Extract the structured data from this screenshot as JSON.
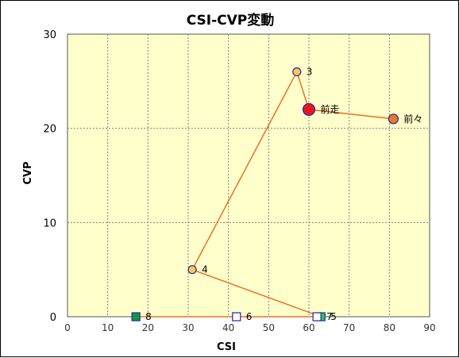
{
  "chart_data": {
    "type": "scatter",
    "title": "CSI-CVP変動",
    "xlabel": "CSI",
    "ylabel": "CVP",
    "xlim": [
      0,
      90
    ],
    "ylim": [
      0,
      30
    ],
    "x_ticks": [
      0,
      10,
      20,
      30,
      40,
      50,
      60,
      70,
      80,
      90
    ],
    "y_ticks": [
      0,
      10,
      20,
      30
    ],
    "grid": true,
    "colors": {
      "plot_bg": "#ffffcc",
      "grid": "#808080",
      "line": "#f07020",
      "marker_border": "#2020c0"
    },
    "path_order": [
      "前々",
      "前走",
      "3",
      "4",
      "5",
      "6",
      "7",
      "8"
    ],
    "points": [
      {
        "label": "前々",
        "x": 81,
        "y": 21,
        "marker": "circle",
        "color": "#f07820",
        "size": "medium",
        "on_path": true
      },
      {
        "label": "前走",
        "x": 60,
        "y": 22,
        "marker": "circle",
        "color": "#e81818",
        "size": "large",
        "on_path": true
      },
      {
        "label": "3",
        "x": 57,
        "y": 26,
        "marker": "circle",
        "color": "#ffcc44",
        "size": "small",
        "on_path": true
      },
      {
        "label": "4",
        "x": 31,
        "y": 5,
        "marker": "circle",
        "color": "#ffcc44",
        "size": "small",
        "on_path": true
      },
      {
        "label": "5",
        "x": 63,
        "y": 0,
        "marker": "square",
        "color": "#33cc33",
        "size": "small",
        "on_path": true
      },
      {
        "label": "6",
        "x": 42,
        "y": 0,
        "marker": "square",
        "color": "#ffffff",
        "size": "small",
        "on_path": true
      },
      {
        "label": "7",
        "x": 62,
        "y": 0,
        "marker": "square",
        "color": "#ffffff",
        "size": "small",
        "on_path": true
      },
      {
        "label": "8",
        "x": 17,
        "y": 0,
        "marker": "square",
        "color": "#119933",
        "size": "small",
        "on_path": true
      }
    ]
  }
}
